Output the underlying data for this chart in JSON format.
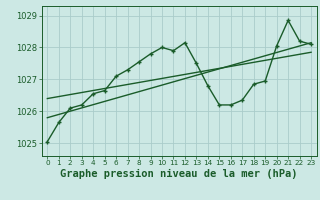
{
  "bg_color": "#cce8e4",
  "grid_color": "#aaccca",
  "line_color": "#1a5c2a",
  "title": "Graphe pression niveau de la mer (hPa)",
  "xlim": [
    -0.5,
    23.5
  ],
  "ylim": [
    1024.6,
    1029.3
  ],
  "yticks": [
    1025,
    1026,
    1027,
    1028,
    1029
  ],
  "xticks": [
    0,
    1,
    2,
    3,
    4,
    5,
    6,
    7,
    8,
    9,
    10,
    11,
    12,
    13,
    14,
    15,
    16,
    17,
    18,
    19,
    20,
    21,
    22,
    23
  ],
  "main_x": [
    0,
    1,
    2,
    3,
    4,
    5,
    6,
    7,
    8,
    9,
    10,
    11,
    12,
    13,
    14,
    15,
    16,
    17,
    18,
    19,
    20,
    21,
    22,
    23
  ],
  "main_y": [
    1025.05,
    1025.65,
    1026.1,
    1026.2,
    1026.55,
    1026.65,
    1027.1,
    1027.3,
    1027.55,
    1027.8,
    1028.0,
    1027.9,
    1028.15,
    1027.5,
    1026.8,
    1026.2,
    1026.2,
    1026.35,
    1026.85,
    1026.95,
    1028.05,
    1028.85,
    1028.2,
    1028.1
  ],
  "trend1_x": [
    0,
    23
  ],
  "trend1_y": [
    1025.8,
    1028.15
  ],
  "trend2_x": [
    0,
    23
  ],
  "trend2_y": [
    1026.4,
    1027.85
  ],
  "title_fontsize": 7.5,
  "lw_main": 1.0,
  "lw_trend": 1.0,
  "marker": "+"
}
